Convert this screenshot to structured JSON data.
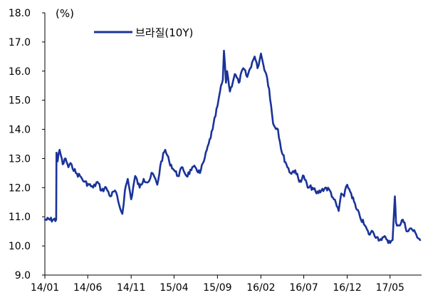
{
  "chart_data": {
    "type": "line",
    "title": "",
    "unit_label": "(%)",
    "xlabel": "",
    "ylabel": "",
    "ylim": [
      9.0,
      18.0
    ],
    "y_ticks": [
      "9.0",
      "10.0",
      "11.0",
      "12.0",
      "13.0",
      "14.0",
      "15.0",
      "16.0",
      "17.0",
      "18.0"
    ],
    "x_ticks": [
      "14/01",
      "14/06",
      "14/11",
      "15/04",
      "15/09",
      "16/02",
      "16/07",
      "16/12",
      "17/05"
    ],
    "grid": false,
    "legend_position": "top-left",
    "series": [
      {
        "name": "브라질(10Y)",
        "color": "#1a3399",
        "x": [
          "2014-01-01",
          "2014-02-10",
          "2014-02-11",
          "2014-02-15",
          "2014-02-22",
          "2014-03-05",
          "2014-03-15",
          "2014-03-25",
          "2014-04-05",
          "2014-04-20",
          "2014-05-05",
          "2014-05-20",
          "2014-06-05",
          "2014-06-20",
          "2014-07-05",
          "2014-07-20",
          "2014-08-05",
          "2014-08-20",
          "2014-09-05",
          "2014-09-20",
          "2014-10-01",
          "2014-10-10",
          "2014-10-20",
          "2014-11-01",
          "2014-11-15",
          "2014-12-01",
          "2014-12-15",
          "2015-01-01",
          "2015-01-15",
          "2015-02-01",
          "2015-02-15",
          "2015-03-01",
          "2015-03-15",
          "2015-04-01",
          "2015-04-15",
          "2015-05-01",
          "2015-05-15",
          "2015-06-01",
          "2015-06-15",
          "2015-07-01",
          "2015-07-15",
          "2015-08-01",
          "2015-08-15",
          "2015-09-01",
          "2015-09-10",
          "2015-09-20",
          "2015-09-24",
          "2015-10-01",
          "2015-10-05",
          "2015-10-15",
          "2015-11-01",
          "2015-11-15",
          "2015-12-01",
          "2015-12-15",
          "2016-01-01",
          "2016-01-10",
          "2016-01-20",
          "2016-02-01",
          "2016-02-10",
          "2016-02-20",
          "2016-03-01",
          "2016-03-15",
          "2016-04-01",
          "2016-04-15",
          "2016-05-01",
          "2016-05-15",
          "2016-06-01",
          "2016-06-15",
          "2016-07-01",
          "2016-07-15",
          "2016-08-01",
          "2016-08-15",
          "2016-09-01",
          "2016-09-15",
          "2016-10-01",
          "2016-10-15",
          "2016-11-01",
          "2016-11-10",
          "2016-11-20",
          "2016-12-01",
          "2016-12-15",
          "2017-01-01",
          "2017-01-15",
          "2017-02-01",
          "2017-02-15",
          "2017-03-01",
          "2017-03-15",
          "2017-04-01",
          "2017-04-15",
          "2017-05-01",
          "2017-05-10",
          "2017-05-18",
          "2017-05-22",
          "2017-06-01",
          "2017-06-15",
          "2017-07-01",
          "2017-07-15",
          "2017-08-01",
          "2017-08-15"
        ],
        "y": [
          10.9,
          10.9,
          13.2,
          12.9,
          13.3,
          12.8,
          13.0,
          12.7,
          12.8,
          12.5,
          12.4,
          12.2,
          12.1,
          12.0,
          12.2,
          11.9,
          12.0,
          11.7,
          11.9,
          11.4,
          11.1,
          11.9,
          12.3,
          11.6,
          12.4,
          12.0,
          12.3,
          12.2,
          12.5,
          12.1,
          12.9,
          13.3,
          12.9,
          12.6,
          12.4,
          12.7,
          12.4,
          12.6,
          12.7,
          12.5,
          12.9,
          13.5,
          14.0,
          14.8,
          15.3,
          15.7,
          16.7,
          15.6,
          16.0,
          15.3,
          15.9,
          15.6,
          16.1,
          15.8,
          16.3,
          16.5,
          16.1,
          16.6,
          16.2,
          15.9,
          15.4,
          14.2,
          14.0,
          13.2,
          12.8,
          12.5,
          12.6,
          12.2,
          12.4,
          12.0,
          12.0,
          11.8,
          11.9,
          12.0,
          11.9,
          11.6,
          11.2,
          11.8,
          11.7,
          12.1,
          11.8,
          11.3,
          11.0,
          10.7,
          10.4,
          10.5,
          10.3,
          10.2,
          10.3,
          10.1,
          10.2,
          11.7,
          10.8,
          10.7,
          10.9,
          10.5,
          10.6,
          10.4,
          10.2
        ]
      }
    ]
  }
}
